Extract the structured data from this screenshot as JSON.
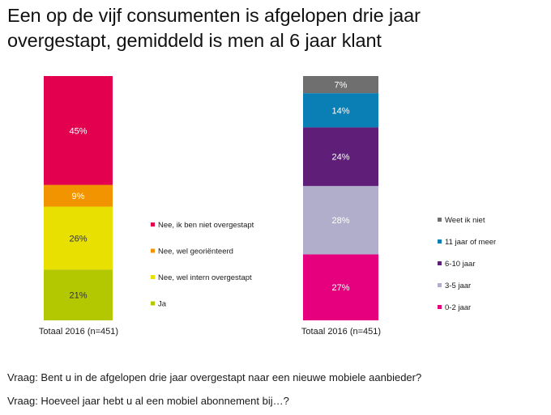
{
  "title": {
    "line1": "Een op de vijf consumenten is afgelopen drie jaar",
    "line2": "overgestapt, gemiddeld is men al 6 jaar klant"
  },
  "chart_data": [
    {
      "type": "bar",
      "stacked": true,
      "categories": [
        "Totaal 2016 (n=451)"
      ],
      "series": [
        {
          "name": "Ja",
          "values": [
            21
          ],
          "label": "21%",
          "color": "#b3c800"
        },
        {
          "name": "Nee, wel intern overgestapt",
          "values": [
            26
          ],
          "label": "26%",
          "color": "#e8e000"
        },
        {
          "name": "Nee, wel georiënteerd",
          "values": [
            9
          ],
          "label": "9%",
          "color": "#f29400"
        },
        {
          "name": "Nee, ik ben niet overgestapt",
          "values": [
            45
          ],
          "label": "45%",
          "color": "#e3004f"
        }
      ],
      "ylim": [
        0,
        100
      ],
      "grid": false,
      "legend_position": "right"
    },
    {
      "type": "bar",
      "stacked": true,
      "categories": [
        "Totaal 2016 (n=451)"
      ],
      "series": [
        {
          "name": "0-2 jaar",
          "values": [
            27
          ],
          "label": "27%",
          "color": "#e6007e"
        },
        {
          "name": "3-5 jaar",
          "values": [
            28
          ],
          "label": "28%",
          "color": "#b1aecb"
        },
        {
          "name": "6-10 jaar",
          "values": [
            24
          ],
          "label": "24%",
          "color": "#5f1e78"
        },
        {
          "name": "11 jaar of meer",
          "values": [
            14
          ],
          "label": "14%",
          "color": "#0a7fb5"
        },
        {
          "name": "Weet ik niet",
          "values": [
            7
          ],
          "label": "7%",
          "color": "#6f6f6f"
        }
      ],
      "ylim": [
        0,
        100
      ],
      "grid": false,
      "legend_position": "right"
    }
  ],
  "questions": {
    "q1": "Vraag: Bent u in de afgelopen drie jaar overgestapt naar een nieuwe mobiele aanbieder?",
    "q2": "Vraag: Hoeveel jaar hebt u al een mobiel abonnement bij…?"
  }
}
